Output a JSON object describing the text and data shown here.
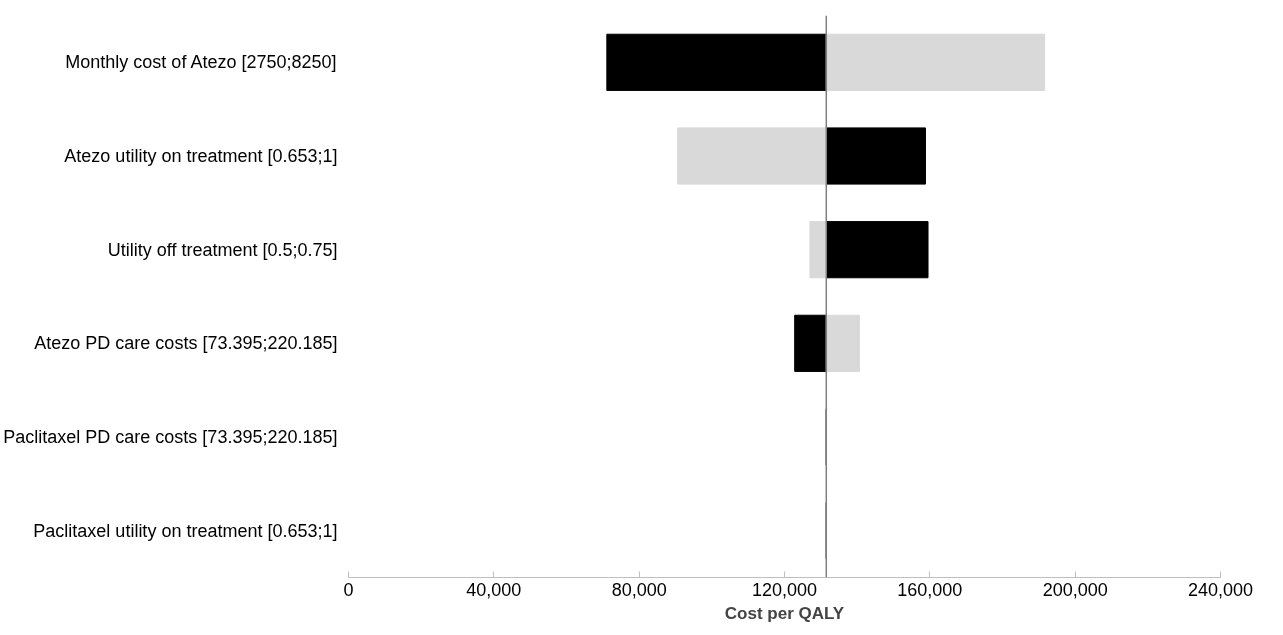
{
  "chart_data": {
    "type": "bar",
    "orientation": "horizontal",
    "xlabel": "Cost per QALY",
    "categories": [
      "Monthly cost of Atezo [2750;8250]",
      "Atezo utility on treatment [0.653;1]",
      "Utility off treatment [0.5;0.75]",
      "Atezo PD care costs [73.395;220.185]",
      "Paclitaxel PD care costs [73.395;220.185]",
      "Paclitaxel utility on treatment [0.653;1]"
    ],
    "series": [
      {
        "color": "#000000",
        "base": [
          71100,
          131500,
          131500,
          122800,
          131500,
          131500
        ],
        "values": [
          60400,
          27300,
          28000,
          8700,
          0,
          0
        ]
      },
      {
        "color": "#d9d9d9",
        "base": [
          131500,
          90600,
          127000,
          131500,
          null,
          null
        ],
        "values": [
          60100,
          40900,
          4500,
          9100,
          null,
          null
        ]
      }
    ],
    "xlim": [
      0,
      240000
    ],
    "xticks": [
      0,
      {
        "value": 40000,
        "label": "40,000"
      },
      {
        "value": 80000,
        "label": "80,000"
      },
      {
        "value": 120000,
        "label": "120,000"
      },
      {
        "value": 160000,
        "label": "160,000"
      },
      {
        "value": 200000,
        "label": "200,000"
      },
      {
        "value": 240000,
        "label": "240,000"
      }
    ],
    "ref_lines": [
      {
        "axis": "x",
        "value": 131500,
        "color": "#7f7f7f"
      }
    ],
    "grid": false
  }
}
